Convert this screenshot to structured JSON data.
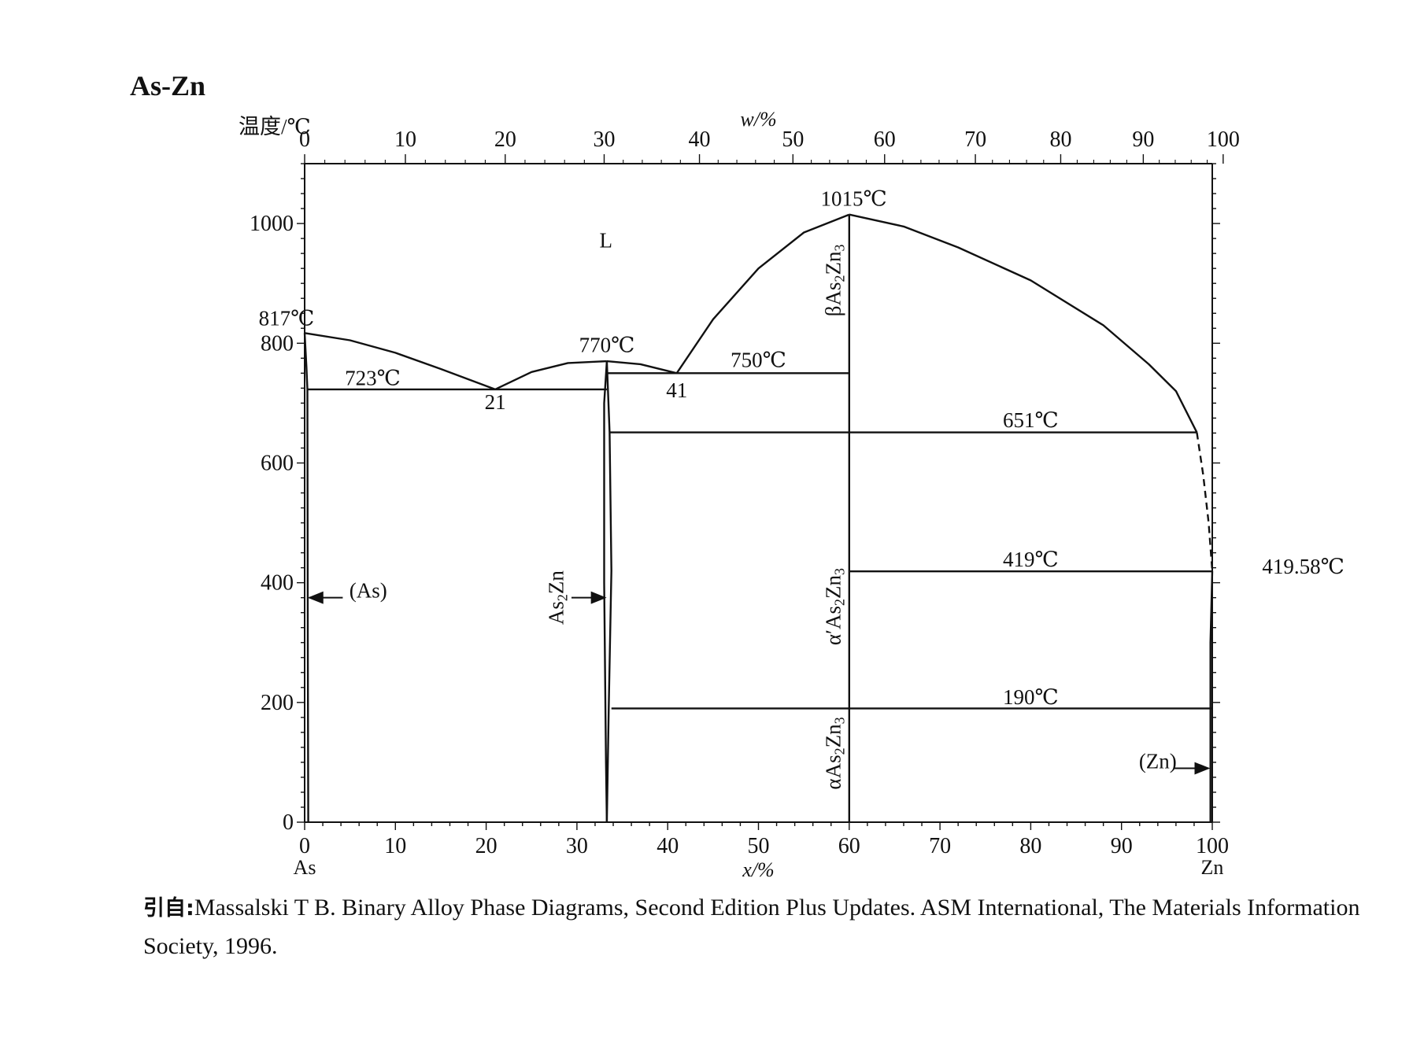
{
  "title": "As-Zn",
  "citation": {
    "prefix": "引自:",
    "text": "Massalski T B. Binary Alloy Phase Diagrams, Second Edition Plus Updates. ASM International, The Materials Information Society, 1996."
  },
  "chart_data": {
    "type": "phase-diagram",
    "title": "As-Zn",
    "xlabel": "x/%",
    "x2label": "w/%",
    "ylabel": "温度/℃",
    "xlim": [
      0,
      100
    ],
    "ylim": [
      0,
      1100
    ],
    "x_ticks": [
      0,
      10,
      20,
      30,
      40,
      50,
      60,
      70,
      80,
      90,
      100
    ],
    "x2_ticks": [
      0,
      10,
      20,
      30,
      40,
      50,
      60,
      70,
      80,
      90,
      100
    ],
    "x2_tick_positions_at_pct": [
      0,
      11.1,
      22.1,
      33.0,
      43.5,
      53.8,
      63.9,
      73.9,
      83.3,
      92.4,
      101.2
    ],
    "y_ticks": [
      0,
      200,
      400,
      600,
      800,
      1000
    ],
    "endpoint_labels": {
      "left": "As",
      "right": "Zn"
    },
    "lines": [
      {
        "name": "liquidus-as-side",
        "points": [
          [
            0,
            817
          ],
          [
            5,
            805
          ],
          [
            10,
            784
          ],
          [
            15,
            757
          ],
          [
            21,
            723
          ]
        ]
      },
      {
        "name": "liquidus-as2zn-left",
        "points": [
          [
            21,
            723
          ],
          [
            25,
            752
          ],
          [
            29,
            767
          ],
          [
            33.3,
            770
          ]
        ]
      },
      {
        "name": "liquidus-as2zn-right",
        "points": [
          [
            33.3,
            770
          ],
          [
            37,
            765
          ],
          [
            41,
            750
          ]
        ]
      },
      {
        "name": "liquidus-as2zn3-left",
        "points": [
          [
            41,
            750
          ],
          [
            45,
            840
          ],
          [
            50,
            925
          ],
          [
            55,
            985
          ],
          [
            60,
            1015
          ]
        ]
      },
      {
        "name": "liquidus-zn-side",
        "points": [
          [
            60,
            1015
          ],
          [
            66,
            995
          ],
          [
            72,
            960
          ],
          [
            80,
            905
          ],
          [
            88,
            830
          ],
          [
            93,
            765
          ],
          [
            96,
            720
          ],
          [
            98.3,
            651
          ]
        ]
      },
      {
        "name": "liquidus-zn-dashed",
        "style": "dashed",
        "points": [
          [
            98.3,
            651
          ],
          [
            99.0,
            580
          ],
          [
            99.6,
            500
          ],
          [
            100,
            419.58
          ]
        ]
      },
      {
        "name": "eutectic-723",
        "points": [
          [
            0.3,
            723
          ],
          [
            33.3,
            723
          ]
        ]
      },
      {
        "name": "eutectic-750",
        "points": [
          [
            33.4,
            750
          ],
          [
            60,
            750
          ]
        ]
      },
      {
        "name": "peritectic-651",
        "points": [
          [
            33.6,
            651
          ],
          [
            98.3,
            651
          ]
        ]
      },
      {
        "name": "transition-419",
        "points": [
          [
            60,
            419
          ],
          [
            100,
            419
          ]
        ]
      },
      {
        "name": "transition-190",
        "points": [
          [
            33.8,
            190
          ],
          [
            100,
            190
          ]
        ]
      },
      {
        "name": "as2zn3-compound",
        "points": [
          [
            60,
            0
          ],
          [
            60,
            1015
          ]
        ]
      },
      {
        "name": "as-solvus",
        "points": [
          [
            0,
            817
          ],
          [
            0.2,
            760
          ],
          [
            0.3,
            723
          ],
          [
            0.35,
            300
          ],
          [
            0.4,
            0
          ]
        ]
      },
      {
        "name": "as2zn-solvus-left",
        "points": [
          [
            33.3,
            770
          ],
          [
            33.0,
            700
          ],
          [
            33.0,
            400
          ],
          [
            33.2,
            100
          ],
          [
            33.3,
            0
          ]
        ]
      },
      {
        "name": "as2zn-solvus-right",
        "points": [
          [
            33.3,
            770
          ],
          [
            33.6,
            651
          ],
          [
            33.8,
            420
          ],
          [
            33.5,
            190
          ],
          [
            33.3,
            0
          ]
        ]
      },
      {
        "name": "zn-solvus",
        "points": [
          [
            100,
            419.58
          ],
          [
            99.8,
            300
          ],
          [
            99.8,
            0
          ]
        ]
      }
    ],
    "annotations": [
      {
        "text": "L",
        "x": 33.2,
        "y": 960
      },
      {
        "text": "817℃",
        "x": -2,
        "y": 830
      },
      {
        "text": "723℃",
        "x": 7.5,
        "y": 730
      },
      {
        "text": "21",
        "x": 21,
        "y": 690
      },
      {
        "text": "770℃",
        "x": 33.3,
        "y": 785
      },
      {
        "text": "41",
        "x": 41,
        "y": 710
      },
      {
        "text": "750℃",
        "x": 50,
        "y": 760
      },
      {
        "text": "1015℃",
        "x": 60.5,
        "y": 1030
      },
      {
        "text": "651℃",
        "x": 80,
        "y": 660
      },
      {
        "text": "419℃",
        "x": 80,
        "y": 427
      },
      {
        "text": "419.58℃",
        "x": 105.5,
        "y": 415
      },
      {
        "text": "190℃",
        "x": 80,
        "y": 197
      },
      {
        "text": "(As)",
        "x": 7,
        "y": 375
      },
      {
        "text": "(Zn)",
        "x": 94,
        "y": 90
      },
      {
        "text": "As2Zn",
        "x": 28.5,
        "y": 375,
        "rotated": true
      },
      {
        "text": "βAs2Zn3",
        "x": 59,
        "y": 905,
        "rotated": true
      },
      {
        "text": "α′As2Zn3",
        "x": 59,
        "y": 360,
        "rotated": true
      },
      {
        "text": "αAs2Zn3",
        "x": 59,
        "y": 115,
        "rotated": true
      }
    ]
  }
}
